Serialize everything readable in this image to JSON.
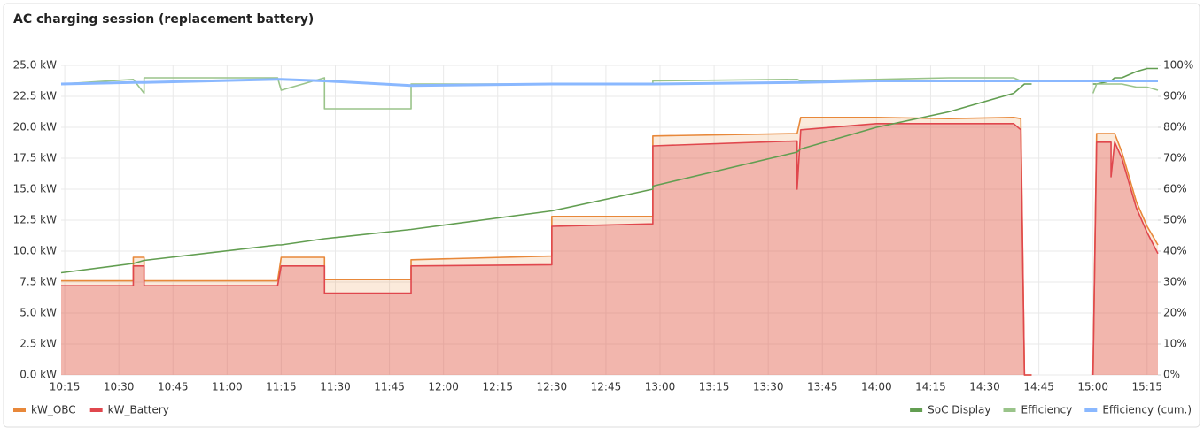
{
  "chart_data": {
    "type": "line",
    "title": "AC charging session (replacement battery)",
    "x": [
      "10:14",
      "10:34",
      "10:34",
      "10:37",
      "10:37",
      "11:14",
      "11:15",
      "11:27",
      "11:27",
      "11:51",
      "11:51",
      "12:30",
      "12:30",
      "12:58",
      "12:58",
      "13:38",
      "13:38",
      "13:39",
      "14:00",
      "14:20",
      "14:38",
      "14:40",
      "14:41",
      "14:43",
      "14:44",
      "14:59",
      "15:00",
      "15:01",
      "15:05",
      "15:05",
      "15:06",
      "15:08",
      "15:12",
      "15:15",
      "15:18"
    ],
    "xlim": [
      "10:14",
      "15:18"
    ],
    "xticks": [
      "10:15",
      "10:30",
      "10:45",
      "11:00",
      "11:15",
      "11:30",
      "11:45",
      "12:00",
      "12:15",
      "12:30",
      "12:45",
      "13:00",
      "13:15",
      "13:30",
      "13:45",
      "14:00",
      "14:15",
      "14:30",
      "14:45",
      "15:00",
      "15:15"
    ],
    "ylim": [
      0,
      25
    ],
    "yticks": [
      {
        "value": 0,
        "label": "0.0 kW"
      },
      {
        "value": 2.5,
        "label": "2.5 kW"
      },
      {
        "value": 5,
        "label": "5.0 kW"
      },
      {
        "value": 7.5,
        "label": "7.5 kW"
      },
      {
        "value": 10,
        "label": "10.0 kW"
      },
      {
        "value": 12.5,
        "label": "12.5 kW"
      },
      {
        "value": 15,
        "label": "15.0 kW"
      },
      {
        "value": 17.5,
        "label": "17.5 kW"
      },
      {
        "value": 20,
        "label": "20.0 kW"
      },
      {
        "value": 22.5,
        "label": "22.5 kW"
      },
      {
        "value": 25,
        "label": "25.0 kW"
      }
    ],
    "y2lim": [
      0,
      100
    ],
    "y2ticks": [
      {
        "value": 0,
        "label": "0%"
      },
      {
        "value": 10,
        "label": "10%"
      },
      {
        "value": 20,
        "label": "20%"
      },
      {
        "value": 30,
        "label": "30%"
      },
      {
        "value": 40,
        "label": "40%"
      },
      {
        "value": 50,
        "label": "50%"
      },
      {
        "value": 60,
        "label": "60%"
      },
      {
        "value": 70,
        "label": "70%"
      },
      {
        "value": 80,
        "label": "80%"
      },
      {
        "value": 90,
        "label": "90%"
      },
      {
        "value": 100,
        "label": "100%"
      }
    ],
    "grid": true,
    "series": [
      {
        "name": "kW_OBC",
        "color": "#e8883a",
        "fill": true,
        "values": [
          7.6,
          7.6,
          9.5,
          9.5,
          7.6,
          7.6,
          9.5,
          9.5,
          7.7,
          7.7,
          9.3,
          9.6,
          12.8,
          12.8,
          19.3,
          19.5,
          19.5,
          20.8,
          20.8,
          20.7,
          20.8,
          20.7,
          0,
          0,
          null,
          null,
          0,
          19.5,
          19.5,
          19.5,
          19.5,
          18.0,
          14.0,
          12.0,
          10.5
        ]
      },
      {
        "name": "kW_Battery",
        "color": "#e0474d",
        "fill": true,
        "values": [
          7.2,
          7.2,
          8.8,
          8.8,
          7.2,
          7.2,
          8.8,
          8.8,
          6.6,
          6.6,
          8.8,
          8.9,
          12.0,
          12.2,
          18.5,
          18.9,
          15.0,
          19.8,
          20.3,
          20.3,
          20.3,
          19.8,
          0,
          0,
          null,
          null,
          0,
          18.8,
          18.8,
          16.0,
          18.8,
          17.5,
          13.5,
          11.5,
          9.8
        ]
      },
      {
        "name": "SoC Display",
        "color": "#629e51",
        "axis": "y2",
        "values": [
          33,
          36,
          36,
          37,
          37,
          42,
          42,
          44,
          44,
          47,
          47,
          53,
          53,
          60,
          61,
          72,
          72,
          73,
          80,
          85,
          91,
          93,
          94,
          94,
          null,
          null,
          94,
          94,
          95,
          95,
          96,
          96,
          98,
          99,
          99
        ]
      },
      {
        "name": "Efficiency",
        "color": "#9ac48a",
        "axis": "y2",
        "values": [
          94,
          95.5,
          95.5,
          91,
          96,
          96,
          92,
          96,
          86,
          86,
          94,
          94,
          94,
          94,
          95,
          95.5,
          95.5,
          95,
          95.5,
          96,
          96,
          95,
          95,
          95,
          null,
          null,
          91,
          94,
          94,
          94,
          94,
          94,
          93,
          93,
          92
        ]
      },
      {
        "name": "Efficiency (cum.)",
        "color": "#8ab8ff",
        "axis": "y2",
        "values": [
          94,
          94.5,
          94.5,
          94.5,
          94.5,
          95.5,
          95.5,
          95,
          95,
          93.5,
          93.5,
          94,
          94,
          94,
          94,
          94.5,
          94.5,
          94.5,
          95,
          95,
          95,
          95,
          95,
          95,
          95,
          95,
          95,
          95,
          95,
          95,
          95,
          95,
          95,
          95,
          95
        ]
      }
    ]
  }
}
